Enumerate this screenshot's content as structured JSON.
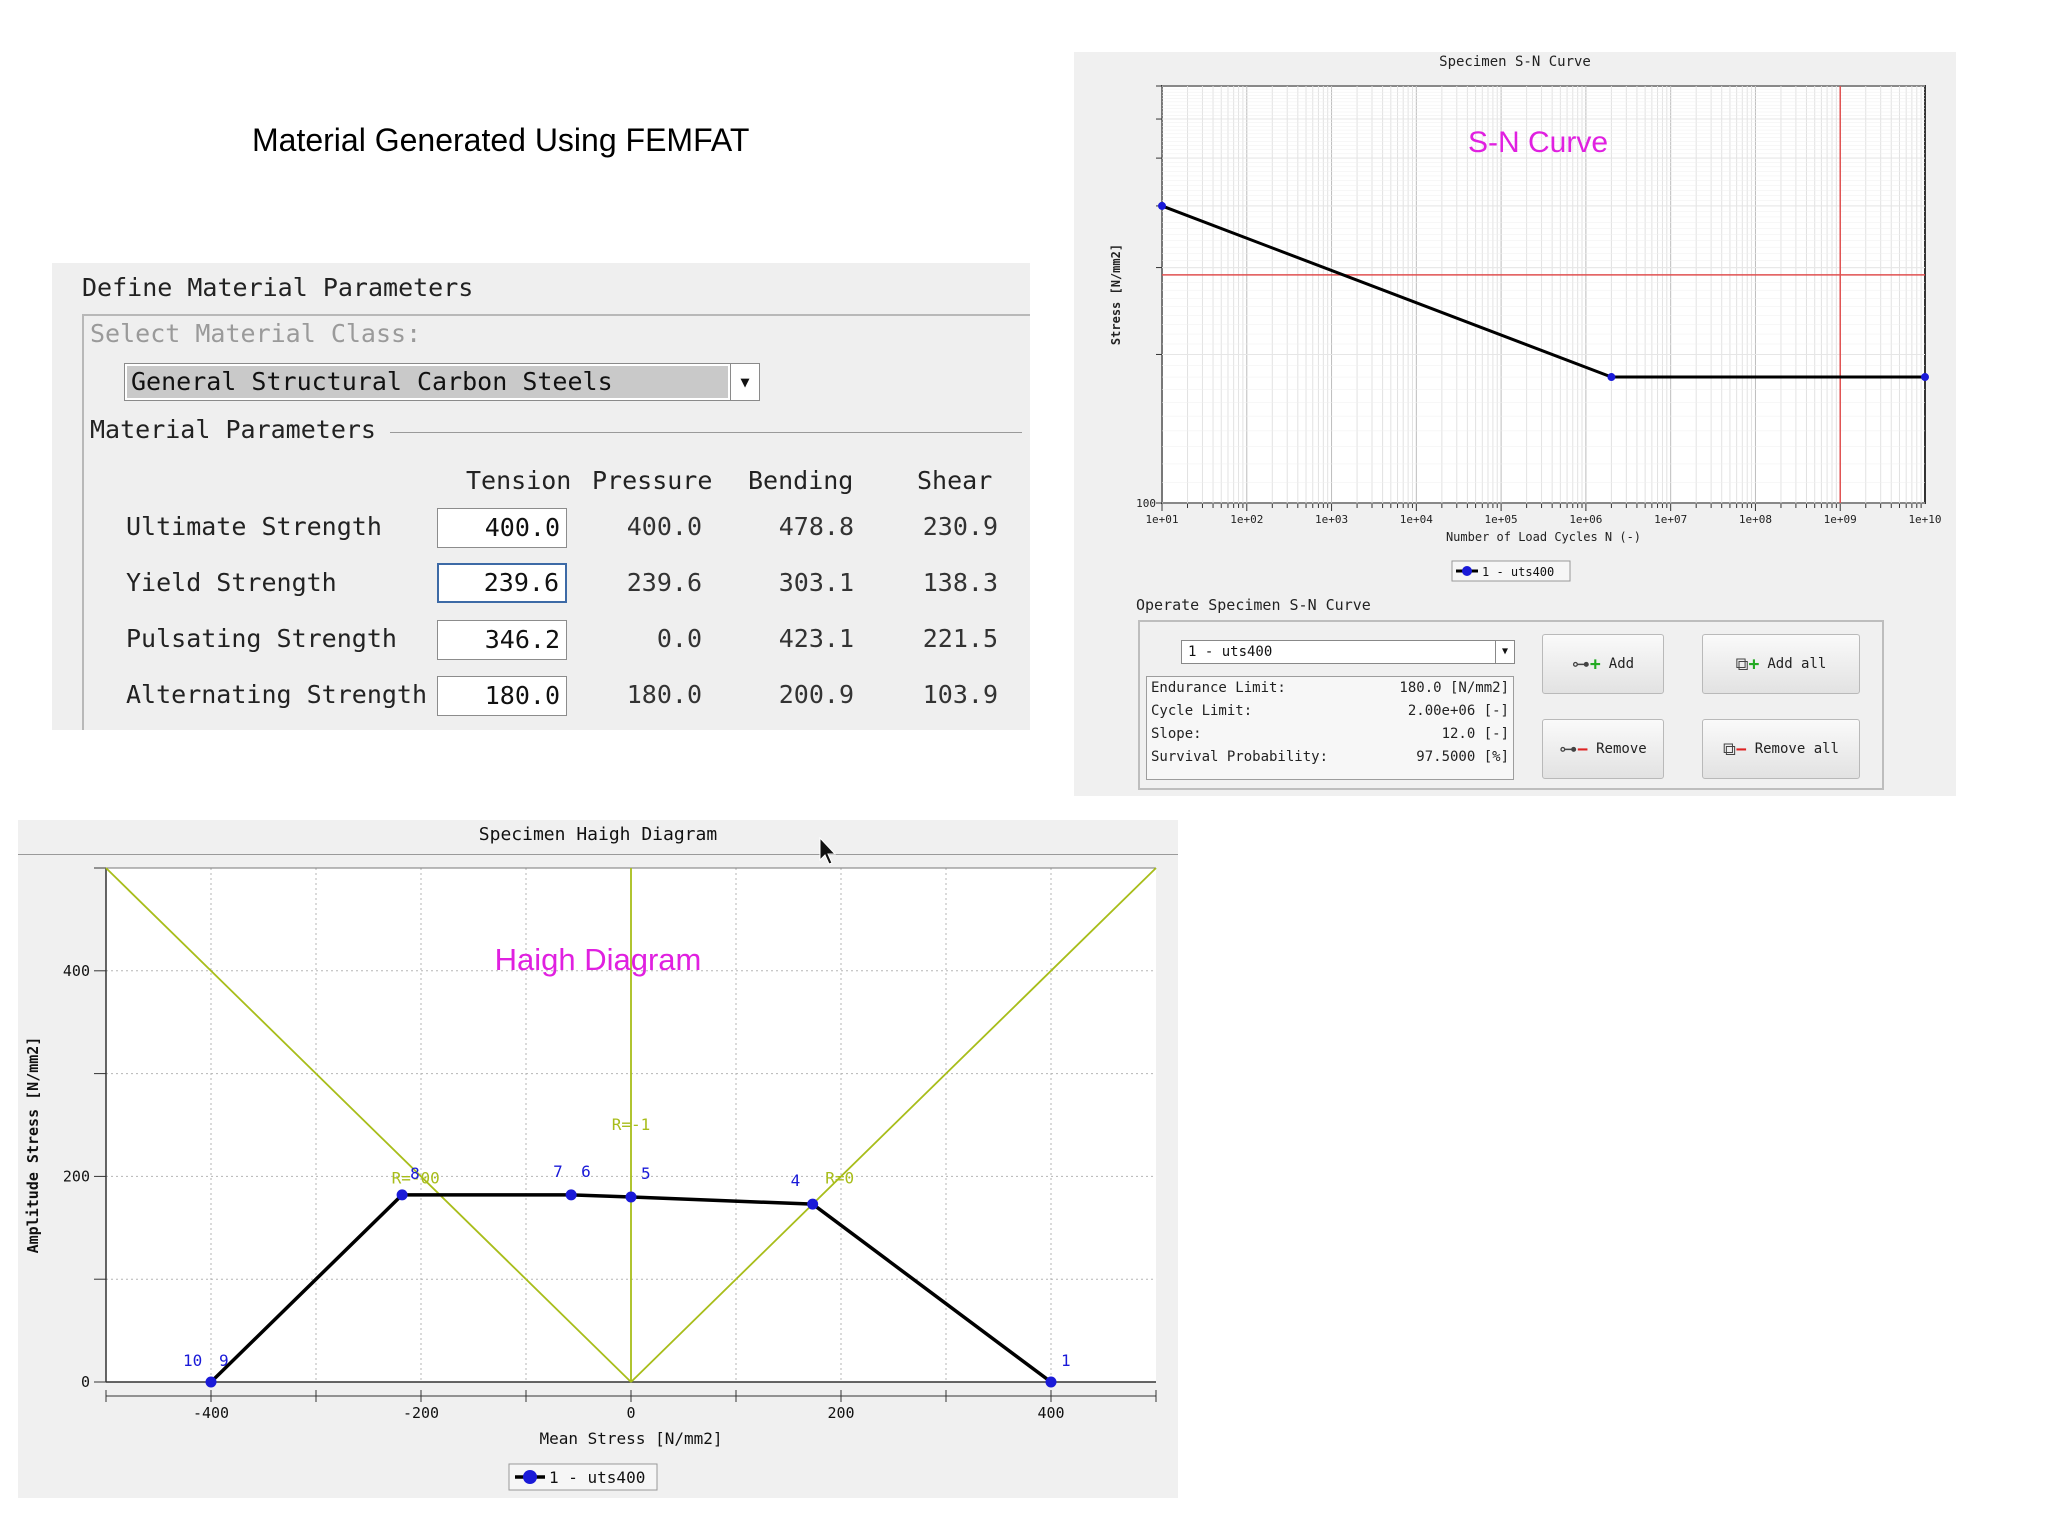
{
  "page_title": "Material Generated Using FEMFAT",
  "material": {
    "panel_title": "Define Material Parameters",
    "select_class_label": "Select Material Class:",
    "selected_class": "General Structural Carbon Steels",
    "group_label": "Material Parameters",
    "columns": [
      "Tension",
      "Pressure",
      "Bending",
      "Shear"
    ],
    "rows": [
      {
        "label": "Ultimate Strength",
        "tension": "400.0",
        "pressure": "400.0",
        "bending": "478.8",
        "shear": "230.9"
      },
      {
        "label": "Yield Strength",
        "tension": "239.6",
        "pressure": "239.6",
        "bending": "303.1",
        "shear": "138.3"
      },
      {
        "label": "Pulsating Strength",
        "tension": "346.2",
        "pressure": "0.0",
        "bending": "423.1",
        "shear": "221.5"
      },
      {
        "label": "Alternating Strength",
        "tension": "180.0",
        "pressure": "180.0",
        "bending": "200.9",
        "shear": "103.9"
      }
    ]
  },
  "sn": {
    "panel_title": "Specimen S-N Curve",
    "overlay_label": "S-N Curve",
    "operate_label": "Operate Specimen S-N Curve",
    "selected_curve": "1 - uts400",
    "legend_label": "1 - uts400",
    "properties": [
      {
        "label": "Endurance Limit:",
        "value": "180.0 [N/mm2]"
      },
      {
        "label": "Cycle Limit:",
        "value": "2.00e+06 [-]"
      },
      {
        "label": "Slope:",
        "value": "12.0 [-]"
      },
      {
        "label": "Survival Probability:",
        "value": "97.5000 [%]"
      }
    ],
    "buttons": {
      "add": "Add",
      "add_all": "Add all",
      "remove": "Remove",
      "remove_all": "Remove all"
    }
  },
  "haigh": {
    "panel_title": "Specimen Haigh Diagram",
    "overlay_label": "Haigh Diagram",
    "legend_label": "1 - uts400"
  },
  "colors": {
    "curve": "#000000",
    "points": "#1a1ad8",
    "r_lines": "#a8bd1a",
    "overlay": "#e020e0",
    "marker": "#e05050"
  },
  "chart_data": [
    {
      "type": "line",
      "title": "Specimen S-N Curve",
      "xlabel": "Number of Load Cycles N (-)",
      "ylabel": "Stress [N/mm2]",
      "x_scale": "log",
      "xlim": [
        10,
        10000000000
      ],
      "x_ticks": [
        "1e+01",
        "1e+02",
        "1e+03",
        "1e+04",
        "1e+05",
        "1e+06",
        "1e+07",
        "1e+08",
        "1e+09",
        "1e+10"
      ],
      "y_scale": "log",
      "y_tick_labels": [
        "100"
      ],
      "series": [
        {
          "name": "1 - uts400",
          "x": [
            10,
            2000000,
            10000000000
          ],
          "y": [
            400,
            180,
            180
          ]
        }
      ],
      "cursor": {
        "x": 1000000000,
        "y": 290
      },
      "grid": true,
      "legend": "bottom"
    },
    {
      "type": "line",
      "title": "Specimen Haigh Diagram",
      "xlabel": "Mean Stress [N/mm2]",
      "ylabel": "Amplitude Stress [N/mm2]",
      "xlim": [
        -500,
        500
      ],
      "ylim": [
        0,
        500
      ],
      "x_ticks": [
        -400,
        -200,
        0,
        200,
        400
      ],
      "y_ticks": [
        0,
        200,
        400
      ],
      "series": [
        {
          "name": "1 - uts400",
          "points": [
            {
              "x": -400,
              "y": 0,
              "label": "10"
            },
            {
              "x": -400,
              "y": 0,
              "label": "9"
            },
            {
              "x": -218,
              "y": 182,
              "label": "8"
            },
            {
              "x": -57,
              "y": 182,
              "label": "7"
            },
            {
              "x": -57,
              "y": 182,
              "label": "6"
            },
            {
              "x": 0,
              "y": 180,
              "label": "5"
            },
            {
              "x": 173,
              "y": 173,
              "label": "4"
            },
            {
              "x": 400,
              "y": 0,
              "label": "1"
            }
          ]
        }
      ],
      "r_ratio_lines": [
        {
          "label": "R=-1",
          "x1": 0,
          "y1": 0,
          "x2": 0,
          "y2": 500
        },
        {
          "label": "R=0",
          "x1": 0,
          "y1": 0,
          "x2": 500,
          "y2": 500
        },
        {
          "label": "R=-00",
          "x1": 0,
          "y1": 0,
          "x2": -500,
          "y2": 500
        }
      ],
      "grid": true,
      "legend": "bottom"
    }
  ]
}
